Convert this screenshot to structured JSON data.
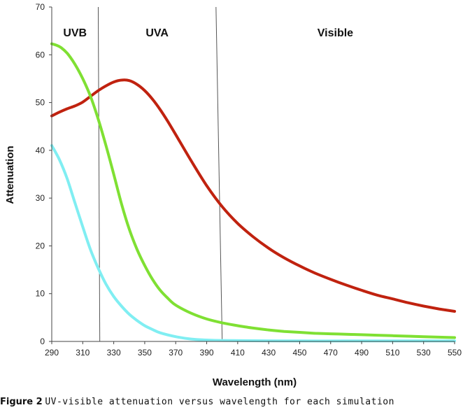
{
  "chart_data": {
    "type": "line",
    "xlabel": "Wavelength (nm)",
    "ylabel": "Attenuation",
    "xlim": [
      290,
      550
    ],
    "ylim": [
      0,
      70
    ],
    "x_ticks": [
      290,
      310,
      330,
      350,
      370,
      390,
      410,
      430,
      450,
      470,
      490,
      510,
      530,
      550
    ],
    "y_ticks": [
      0,
      10,
      20,
      30,
      40,
      50,
      60,
      70
    ],
    "grid": false,
    "legend": "none",
    "regions": [
      {
        "label": "UVB"
      },
      {
        "label": "UVA"
      },
      {
        "label": "Visible"
      }
    ],
    "boundaries": [
      {
        "top_x": 320,
        "bottom_x": 321
      },
      {
        "top_x": 396,
        "bottom_x": 400
      }
    ],
    "series": [
      {
        "color": "#c0220f",
        "x": [
          290,
          295,
          300,
          305,
          310,
          315,
          320,
          325,
          330,
          335,
          340,
          345,
          350,
          355,
          360,
          365,
          370,
          380,
          390,
          400,
          410,
          420,
          430,
          440,
          450,
          460,
          470,
          480,
          490,
          500,
          510,
          520,
          530,
          540,
          550
        ],
        "y": [
          47.2,
          48.0,
          48.7,
          49.3,
          50.1,
          51.3,
          52.5,
          53.5,
          54.3,
          54.7,
          54.6,
          53.8,
          52.5,
          50.7,
          48.5,
          46.0,
          43.3,
          37.8,
          32.6,
          28.2,
          24.7,
          21.9,
          19.5,
          17.5,
          15.8,
          14.3,
          13.0,
          11.8,
          10.7,
          9.7,
          8.9,
          8.1,
          7.4,
          6.8,
          6.3
        ]
      },
      {
        "color": "#7fe033",
        "x": [
          290,
          293,
          296,
          300,
          305,
          310,
          315,
          320,
          325,
          330,
          335,
          340,
          345,
          350,
          355,
          360,
          365,
          370,
          380,
          390,
          400,
          410,
          420,
          430,
          440,
          450,
          460,
          470,
          480,
          490,
          500,
          510,
          520,
          530,
          540,
          550
        ],
        "y": [
          62.3,
          62.0,
          61.5,
          60.3,
          58.0,
          55.0,
          51.3,
          46.5,
          41.0,
          35.0,
          28.8,
          23.5,
          19.3,
          15.9,
          13.0,
          10.7,
          9.0,
          7.6,
          5.9,
          4.7,
          3.9,
          3.3,
          2.8,
          2.4,
          2.1,
          1.9,
          1.7,
          1.6,
          1.5,
          1.4,
          1.3,
          1.2,
          1.1,
          1.0,
          0.9,
          0.8
        ]
      },
      {
        "color": "#80eef2",
        "x": [
          290,
          295,
          300,
          305,
          310,
          315,
          320,
          325,
          330,
          335,
          340,
          345,
          350,
          355,
          360,
          370,
          380,
          390,
          400,
          420,
          450,
          480,
          510,
          550
        ],
        "y": [
          41.0,
          38.0,
          34.0,
          29.0,
          24.0,
          19.2,
          15.3,
          12.0,
          9.4,
          7.4,
          5.7,
          4.4,
          3.3,
          2.5,
          1.8,
          1.0,
          0.5,
          0.3,
          0.2,
          0.15,
          0.1,
          0.1,
          0.1,
          0.1
        ]
      }
    ]
  },
  "caption": {
    "label": "Figure 2",
    "text": "UV-visible attenuation versus wavelength for each simulation"
  }
}
